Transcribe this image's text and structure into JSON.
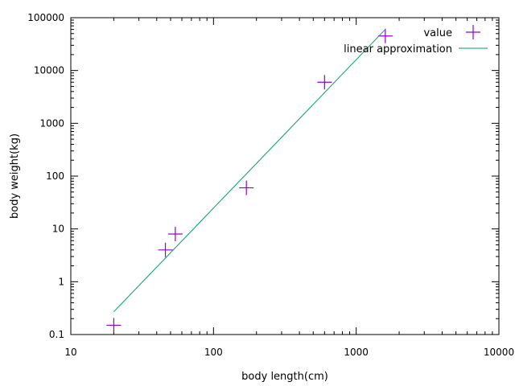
{
  "chart_data": {
    "type": "scatter",
    "title": "",
    "xlabel": "body length(cm)",
    "ylabel": "body weight(kg)",
    "x_scale": "log",
    "y_scale": "log",
    "xlim": [
      10,
      10000
    ],
    "ylim": [
      0.1,
      100000
    ],
    "x_ticks": [
      {
        "value": 10,
        "label": "10"
      },
      {
        "value": 100,
        "label": "100"
      },
      {
        "value": 1000,
        "label": "1000"
      },
      {
        "value": 10000,
        "label": "10000"
      }
    ],
    "y_ticks": [
      {
        "value": 0.1,
        "label": "0.1"
      },
      {
        "value": 1,
        "label": "1"
      },
      {
        "value": 10,
        "label": "10"
      },
      {
        "value": 100,
        "label": "100"
      },
      {
        "value": 1000,
        "label": "1000"
      },
      {
        "value": 10000,
        "label": "10000"
      },
      {
        "value": 100000,
        "label": "100000"
      }
    ],
    "grid": false,
    "legend_position": "top-right",
    "series": [
      {
        "name": "value",
        "kind": "points",
        "marker": "plus",
        "color": "#9400d3",
        "x": [
          20,
          46,
          54,
          170,
          600,
          1600
        ],
        "y": [
          0.15,
          4,
          8,
          60,
          6000,
          45000
        ]
      },
      {
        "name": "linear approximation",
        "kind": "line",
        "color": "#009e73",
        "x": [
          20,
          1600
        ],
        "y": [
          0.27,
          60000
        ]
      }
    ]
  }
}
